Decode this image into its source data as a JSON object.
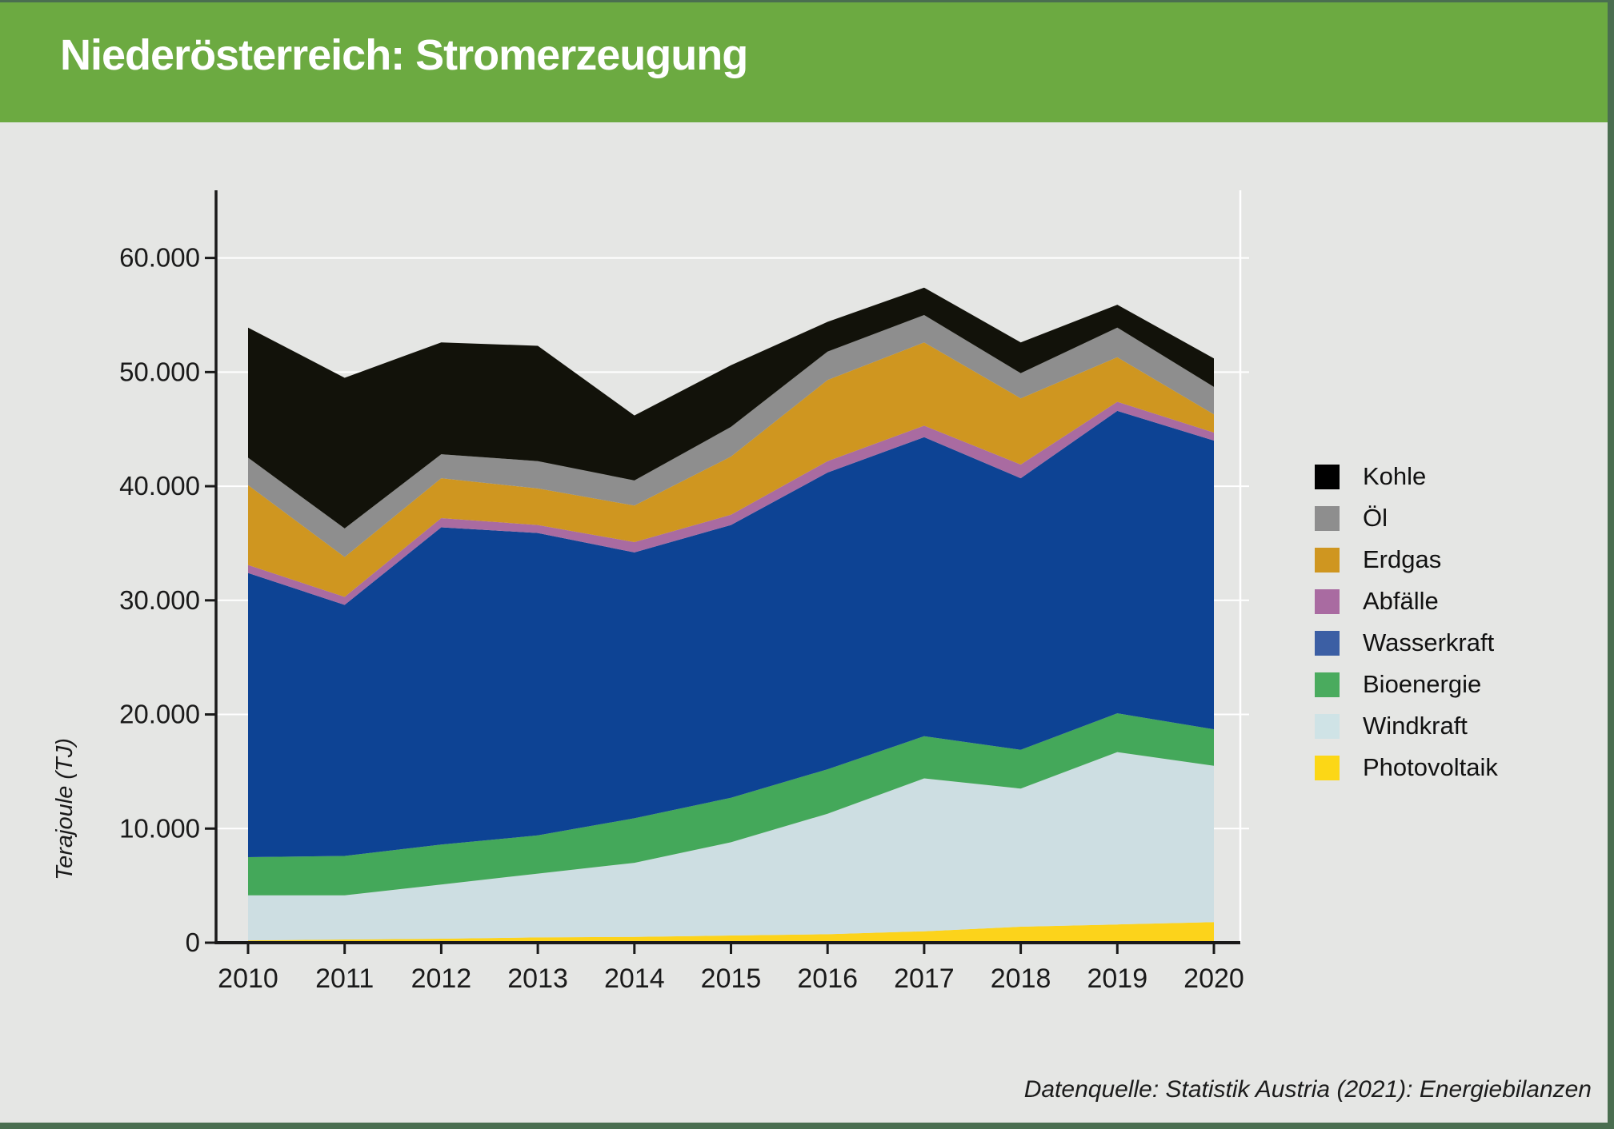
{
  "header": {
    "title": "Niederösterreich: Stromerzeugung",
    "bg_color": "#6caa41",
    "stripe_color": "#4a6e50"
  },
  "chart_data": {
    "type": "area",
    "stacked": true,
    "title": "Niederösterreich: Stromerzeugung",
    "unit": "TJ",
    "ylabel": "Terajoule (TJ)",
    "ylim": [
      0,
      60000
    ],
    "grid": "horizontal white gridlines at 10.000 steps",
    "legend_position": "right",
    "categories": [
      "2010",
      "2011",
      "2012",
      "2013",
      "2014",
      "2015",
      "2016",
      "2017",
      "2018",
      "2019",
      "2020"
    ],
    "y_ticks": [
      {
        "value": 0,
        "label": "0"
      },
      {
        "value": 10000,
        "label": "10.000"
      },
      {
        "value": 20000,
        "label": "20.000"
      },
      {
        "value": 30000,
        "label": "30.000"
      },
      {
        "value": 40000,
        "label": "40.000"
      },
      {
        "value": 50000,
        "label": "50.000"
      },
      {
        "value": 60000,
        "label": "60.000"
      }
    ],
    "series": [
      {
        "name": "Photovoltaik",
        "color": "#fcd31b",
        "values": [
          200,
          280,
          350,
          460,
          510,
          630,
          740,
          1000,
          1400,
          1600,
          1800
        ]
      },
      {
        "name": "Windkraft",
        "color": "#cddee2",
        "values": [
          3950,
          3870,
          4750,
          5590,
          6490,
          8170,
          10560,
          13400,
          12100,
          15100,
          13700
        ]
      },
      {
        "name": "Bioenergie",
        "color": "#44a85a",
        "values": [
          3350,
          3450,
          3500,
          3350,
          3900,
          3900,
          3900,
          3700,
          3400,
          3400,
          3200
        ]
      },
      {
        "name": "Wasserkraft",
        "color": "#0d4394",
        "values": [
          24900,
          22000,
          27800,
          26500,
          23300,
          23900,
          26000,
          26200,
          23800,
          26500,
          25300
        ]
      },
      {
        "name": "Abfälle",
        "color": "#a96ba1",
        "values": [
          700,
          700,
          800,
          700,
          900,
          900,
          1000,
          1000,
          1200,
          800,
          700
        ]
      },
      {
        "name": "Erdgas",
        "color": "#cf9620",
        "values": [
          7000,
          3500,
          3500,
          3200,
          3200,
          5100,
          7100,
          7300,
          5800,
          3900,
          1600
        ]
      },
      {
        "name": "Öl",
        "color": "#8e8e8e",
        "values": [
          2400,
          2500,
          2100,
          2400,
          2200,
          2600,
          2500,
          2400,
          2200,
          2600,
          2400
        ]
      },
      {
        "name": "Kohle",
        "color": "#12120a",
        "values": [
          11400,
          13200,
          9800,
          10100,
          5700,
          5400,
          2600,
          2400,
          2700,
          2000,
          2500
        ]
      }
    ],
    "totals": [
      53900,
      49500,
      52600,
      52300,
      46200,
      50600,
      54400,
      57400,
      52600,
      55900,
      51200
    ]
  },
  "axis": {
    "y_label": "Terajoule (TJ)"
  },
  "legend": {
    "items": [
      {
        "label": "Kohle",
        "color": "#000000"
      },
      {
        "label": "Öl",
        "color": "#8e8e8e"
      },
      {
        "label": "Erdgas",
        "color": "#cf9620"
      },
      {
        "label": "Abfälle",
        "color": "#a96ba1"
      },
      {
        "label": "Wasserkraft",
        "color": "#3c5fa4"
      },
      {
        "label": "Bioenergie",
        "color": "#4aab5e"
      },
      {
        "label": "Windkraft",
        "color": "#cfe3e6"
      },
      {
        "label": "Photovoltaik",
        "color": "#fcd716"
      }
    ]
  },
  "footer": {
    "source": "Datenquelle: Statistik Austria (2021): Energiebilanzen"
  }
}
